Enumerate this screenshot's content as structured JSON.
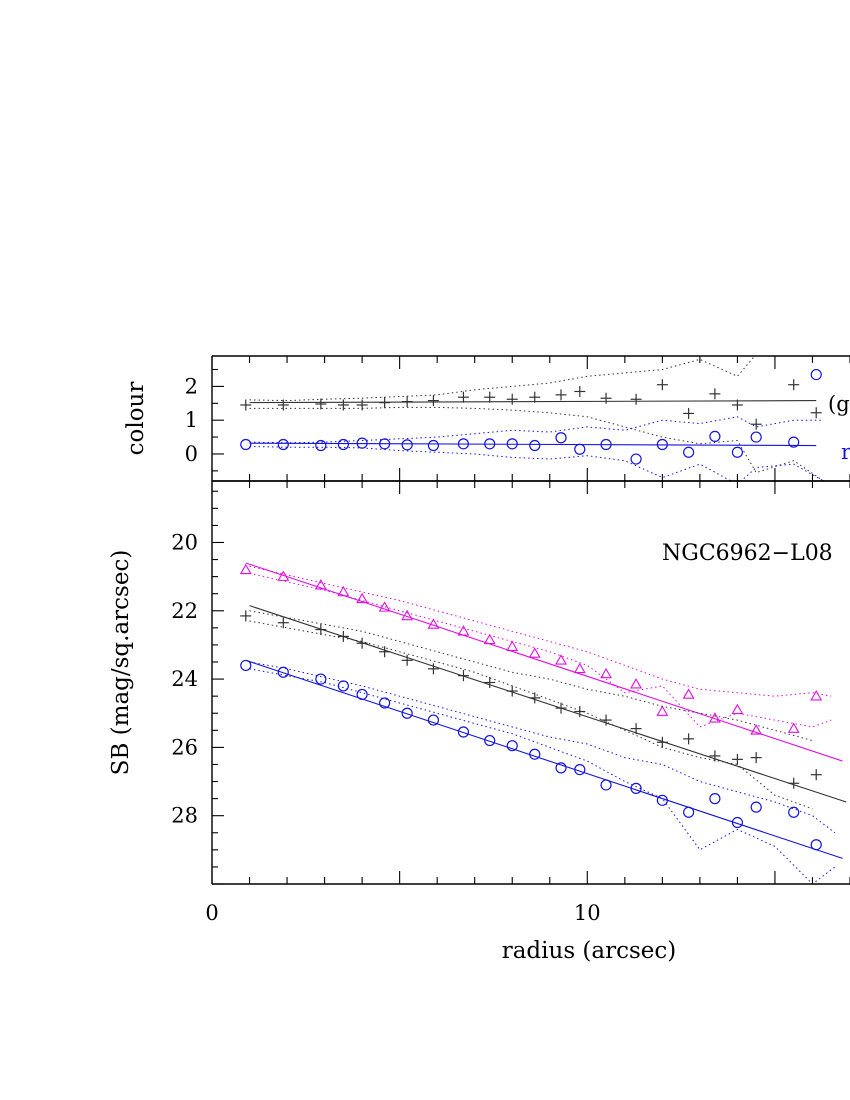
{
  "chart_data": {
    "type": "scatter",
    "x_axis": {
      "label": "radius (arcsec)",
      "range": [
        0,
        17
      ],
      "ticks": [
        0,
        10
      ],
      "tick_labels": [
        "0",
        "10"
      ]
    },
    "panels": [
      {
        "id": "colour",
        "ylabel": "colour",
        "ylim": [
          2.9,
          -0.8
        ],
        "ticks": [
          0,
          1,
          2
        ],
        "tick_labels": [
          "0",
          "1",
          "2"
        ],
        "annotations": [
          "(g",
          "r"
        ],
        "series": [
          {
            "marker": "plus",
            "color": "#333333",
            "x": [
              0.9,
              1.9,
              2.9,
              3.5,
              4.0,
              4.6,
              5.2,
              5.9,
              6.7,
              7.4,
              8.0,
              8.6,
              9.3,
              9.8,
              10.5,
              11.3,
              12.0,
              12.7,
              13.4,
              14.0,
              14.5,
              15.5,
              16.1
            ],
            "y": [
              1.45,
              1.45,
              1.48,
              1.45,
              1.45,
              1.52,
              1.55,
              1.58,
              1.68,
              1.68,
              1.62,
              1.68,
              1.75,
              1.85,
              1.65,
              1.62,
              2.05,
              1.2,
              1.78,
              1.45,
              0.88,
              2.05,
              1.22
            ],
            "fit_line": {
              "x": [
                1.0,
                16.1
              ],
              "y": [
                1.52,
                1.58
              ]
            },
            "dotted_upper_x": [
              1,
              2,
              3,
              4,
              5,
              6,
              7,
              8,
              9,
              10,
              11,
              12,
              13,
              14,
              14.5,
              15.5,
              16.3
            ],
            "dotted_upper_y": [
              1.6,
              1.58,
              1.62,
              1.65,
              1.7,
              1.75,
              1.9,
              2.0,
              2.1,
              2.3,
              2.4,
              2.5,
              2.8,
              2.3,
              2.95,
              2.95,
              2.9
            ],
            "dotted_lower_x": [
              1,
              2,
              3,
              4,
              5,
              6,
              7,
              8,
              9,
              10,
              11,
              12,
              13,
              14,
              14.5,
              15.5,
              16.3
            ],
            "dotted_lower_y": [
              1.35,
              1.35,
              1.35,
              1.35,
              1.38,
              1.38,
              1.35,
              1.3,
              1.22,
              1.1,
              0.8,
              0.5,
              0.3,
              0.4,
              -0.55,
              -0.2,
              -0.8
            ]
          },
          {
            "marker": "circle",
            "color": "#1515e0",
            "x": [
              0.9,
              1.9,
              2.9,
              3.5,
              4.0,
              4.6,
              5.2,
              5.9,
              6.7,
              7.4,
              8.0,
              8.6,
              9.3,
              9.8,
              10.5,
              11.3,
              12.0,
              12.7,
              13.4,
              14.0,
              14.5,
              15.5,
              16.1
            ],
            "y": [
              0.28,
              0.28,
              0.25,
              0.28,
              0.32,
              0.3,
              0.27,
              0.25,
              0.3,
              0.3,
              0.3,
              0.25,
              0.48,
              0.14,
              0.28,
              -0.15,
              0.28,
              0.05,
              0.52,
              0.05,
              0.5,
              0.35,
              2.35
            ],
            "fit_line": {
              "x": [
                1.0,
                16.1
              ],
              "y": [
                0.32,
                0.25
              ]
            },
            "dotted_upper_x": [
              1,
              2,
              3,
              4,
              5,
              6,
              7,
              8,
              9,
              10,
              11,
              12,
              13,
              14,
              14.5,
              15.5,
              16.3
            ],
            "dotted_upper_y": [
              0.35,
              0.33,
              0.35,
              0.4,
              0.45,
              0.5,
              0.6,
              0.7,
              0.65,
              0.8,
              0.7,
              1.0,
              0.9,
              1.1,
              0.8,
              1.0,
              1.0
            ],
            "dotted_lower_x": [
              1,
              2,
              3,
              4,
              5,
              6,
              7,
              8,
              9,
              10,
              11,
              12,
              13,
              14,
              14.5,
              15.5,
              16.3
            ],
            "dotted_lower_y": [
              0.22,
              0.2,
              0.2,
              0.18,
              0.1,
              0.05,
              0.0,
              -0.1,
              -0.15,
              -0.05,
              -0.2,
              -0.7,
              -0.3,
              -0.9,
              -0.4,
              -0.3,
              -0.8
            ]
          }
        ]
      },
      {
        "id": "sb",
        "ylabel": "SB (mag/sq.arcsec)",
        "ylim": [
          18.2,
          30.0
        ],
        "ticks": [
          20,
          22,
          24,
          26,
          28
        ],
        "tick_labels": [
          "20",
          "22",
          "24",
          "26",
          "28"
        ],
        "annotations": [
          "NGC6962−L08"
        ],
        "series": [
          {
            "marker": "triangle",
            "color": "#e010e0",
            "x": [
              0.9,
              1.9,
              2.9,
              3.5,
              4.0,
              4.6,
              5.2,
              5.9,
              6.7,
              7.4,
              8.0,
              8.6,
              9.3,
              9.8,
              10.5,
              11.3,
              12.0,
              12.7,
              13.4,
              14.0,
              14.5,
              15.5,
              16.1
            ],
            "y": [
              20.8,
              21.0,
              21.25,
              21.45,
              21.65,
              21.9,
              22.15,
              22.4,
              22.6,
              22.85,
              23.05,
              23.25,
              23.45,
              23.7,
              23.85,
              24.15,
              24.95,
              24.45,
              25.15,
              24.9,
              25.5,
              25.45,
              24.5
            ],
            "fit_line": {
              "x": [
                0.9,
                16.8
              ],
              "y": [
                20.6,
                26.4
              ]
            },
            "dotted_upper_x": [
              1,
              2,
              3,
              4,
              5,
              6,
              7,
              8,
              9,
              10,
              11,
              12,
              13,
              14,
              15,
              16,
              16.5
            ],
            "dotted_upper_y": [
              20.9,
              21.15,
              21.4,
              21.7,
              22.0,
              22.3,
              22.6,
              22.9,
              23.2,
              23.6,
              24.4,
              24.2,
              25.4,
              25.0,
              25.2,
              25.4,
              25.2
            ],
            "dotted_lower_x": [
              1,
              2,
              3,
              4,
              5,
              6,
              7,
              8,
              9,
              10,
              11,
              12,
              13,
              14,
              15,
              16,
              16.5
            ],
            "dotted_lower_y": [
              20.7,
              20.95,
              21.2,
              21.45,
              21.7,
              22.0,
              22.3,
              22.6,
              22.9,
              23.2,
              23.6,
              24.0,
              24.3,
              24.4,
              24.5,
              24.4,
              24.5
            ]
          },
          {
            "marker": "plus",
            "color": "#333333",
            "x": [
              0.9,
              1.9,
              2.9,
              3.5,
              4.0,
              4.6,
              5.2,
              5.9,
              6.7,
              7.4,
              8.0,
              8.6,
              9.3,
              9.8,
              10.5,
              11.3,
              12.0,
              12.7,
              13.4,
              14.0,
              14.5,
              15.5,
              16.1
            ],
            "y": [
              22.15,
              22.35,
              22.55,
              22.75,
              22.95,
              23.2,
              23.45,
              23.7,
              23.9,
              24.1,
              24.35,
              24.55,
              24.85,
              24.95,
              25.2,
              25.45,
              25.85,
              25.75,
              26.25,
              26.35,
              26.3,
              27.05,
              26.8
            ],
            "fit_line": {
              "x": [
                1.0,
                16.9
              ],
              "y": [
                21.85,
                27.6
              ]
            },
            "dotted_upper_x": [
              1,
              2,
              3,
              4,
              5,
              6,
              7,
              8,
              9,
              10,
              11,
              12,
              13,
              14,
              15,
              16
            ],
            "dotted_upper_y": [
              22.0,
              22.2,
              22.4,
              22.6,
              22.9,
              23.2,
              23.5,
              23.8,
              24.0,
              24.3,
              24.5,
              24.8,
              25.0,
              25.2,
              25.5,
              25.8
            ],
            "dotted_lower_x": [
              1,
              2,
              3,
              4,
              5,
              6,
              7,
              8,
              9,
              10,
              11,
              12,
              13,
              14,
              15,
              16
            ],
            "dotted_lower_y": [
              22.3,
              22.5,
              22.7,
              22.9,
              23.2,
              23.5,
              23.8,
              24.2,
              24.6,
              25.0,
              25.5,
              26.0,
              26.3,
              26.5,
              27.4,
              27.8
            ]
          },
          {
            "marker": "circle",
            "color": "#1515e0",
            "x": [
              0.9,
              1.9,
              2.9,
              3.5,
              4.0,
              4.6,
              5.2,
              5.9,
              6.7,
              7.4,
              8.0,
              8.6,
              9.3,
              9.8,
              10.5,
              11.3,
              12.0,
              12.7,
              13.4,
              14.0,
              14.5,
              15.5,
              16.1
            ],
            "y": [
              23.6,
              23.8,
              24.0,
              24.2,
              24.45,
              24.7,
              25.0,
              25.2,
              25.55,
              25.8,
              25.95,
              26.2,
              26.6,
              26.65,
              27.1,
              27.2,
              27.55,
              27.9,
              27.5,
              28.2,
              27.75,
              27.9,
              28.85
            ],
            "fit_line": {
              "x": [
                0.9,
                16.8
              ],
              "y": [
                23.45,
                29.25
              ]
            },
            "dotted_upper_x": [
              1,
              2,
              3,
              4,
              5,
              6,
              7,
              8,
              9,
              10,
              11,
              12,
              13,
              14,
              15,
              16,
              16.6
            ],
            "dotted_upper_y": [
              23.5,
              23.7,
              23.95,
              24.2,
              24.5,
              24.8,
              25.1,
              25.4,
              25.7,
              25.9,
              26.3,
              26.5,
              27.0,
              27.3,
              27.6,
              28.0,
              28.5
            ],
            "dotted_lower_x": [
              1,
              2,
              3,
              4,
              5,
              6,
              7,
              8,
              9,
              10,
              11,
              12,
              13,
              14,
              15,
              16,
              16.6
            ],
            "dotted_lower_y": [
              23.7,
              23.9,
              24.1,
              24.4,
              24.7,
              25.0,
              25.3,
              25.6,
              26.0,
              26.4,
              27.0,
              27.5,
              29.0,
              28.4,
              28.9,
              30.0,
              29.5
            ]
          }
        ]
      }
    ]
  }
}
